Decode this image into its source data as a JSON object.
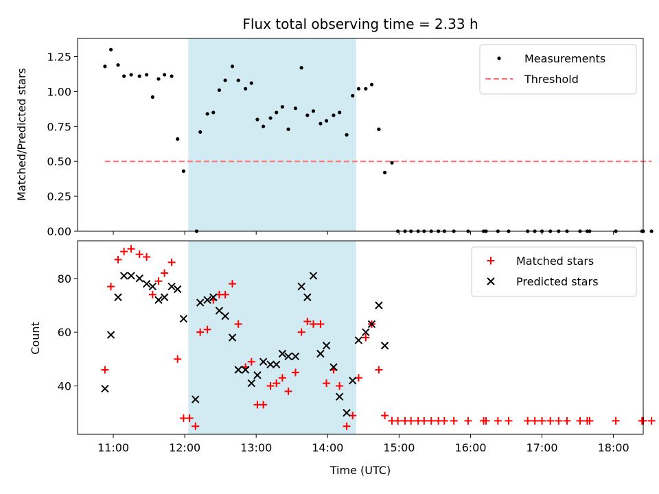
{
  "chart_data": [
    {
      "type": "scatter",
      "title": "Flux total observing time = 2.33 h",
      "xlabel": "",
      "ylabel": "Matched/Predicted stars",
      "xlim": [
        "10:30",
        "18:25"
      ],
      "ylim": [
        0,
        1.38
      ],
      "yticks": [
        "0.00",
        "0.25",
        "0.50",
        "0.75",
        "1.00",
        "1.25"
      ],
      "legend_position": "upper-right",
      "shaded_span": {
        "start": "12:03",
        "end": "14:24",
        "color": "#add8e6"
      },
      "series": [
        {
          "name": "Measurements",
          "color": "#000000",
          "marker": "dot",
          "points": [
            [
              "10:53",
              1.18
            ],
            [
              "10:58",
              1.3
            ],
            [
              "11:04",
              1.19
            ],
            [
              "11:09",
              1.11
            ],
            [
              "11:15",
              1.12
            ],
            [
              "11:22",
              1.11
            ],
            [
              "11:28",
              1.12
            ],
            [
              "11:33",
              0.96
            ],
            [
              "11:38",
              1.09
            ],
            [
              "11:43",
              1.12
            ],
            [
              "11:49",
              1.11
            ],
            [
              "11:54",
              0.66
            ],
            [
              "11:59",
              0.43
            ],
            [
              "12:10",
              0.0
            ],
            [
              "12:13",
              0.71
            ],
            [
              "12:19",
              0.84
            ],
            [
              "12:24",
              0.85
            ],
            [
              "12:29",
              1.01
            ],
            [
              "12:34",
              1.08
            ],
            [
              "12:40",
              1.18
            ],
            [
              "12:45",
              1.08
            ],
            [
              "12:51",
              1.02
            ],
            [
              "12:56",
              1.06
            ],
            [
              "13:01",
              0.8
            ],
            [
              "13:06",
              0.75
            ],
            [
              "13:12",
              0.81
            ],
            [
              "13:17",
              0.85
            ],
            [
              "13:22",
              0.89
            ],
            [
              "13:27",
              0.73
            ],
            [
              "13:33",
              0.88
            ],
            [
              "13:38",
              1.17
            ],
            [
              "13:43",
              0.83
            ],
            [
              "13:48",
              0.86
            ],
            [
              "13:54",
              0.77
            ],
            [
              "13:59",
              0.79
            ],
            [
              "14:05",
              0.83
            ],
            [
              "14:10",
              0.85
            ],
            [
              "14:16",
              0.69
            ],
            [
              "14:21",
              0.97
            ],
            [
              "14:26",
              1.02
            ],
            [
              "14:32",
              1.02
            ],
            [
              "14:37",
              1.05
            ],
            [
              "14:43",
              0.73
            ],
            [
              "14:48",
              0.42
            ],
            [
              "14:54",
              0.49
            ],
            [
              "14:59",
              0.0
            ],
            [
              "15:05",
              0.0
            ],
            [
              "15:10",
              0.0
            ],
            [
              "15:16",
              0.0
            ],
            [
              "15:21",
              0.0
            ],
            [
              "15:27",
              0.0
            ],
            [
              "15:33",
              0.0
            ],
            [
              "15:38",
              0.0
            ],
            [
              "15:46",
              0.0
            ],
            [
              "15:58",
              0.0
            ],
            [
              "16:11",
              0.0
            ],
            [
              "16:13",
              0.0
            ],
            [
              "16:23",
              0.0
            ],
            [
              "16:32",
              0.0
            ],
            [
              "16:48",
              0.0
            ],
            [
              "16:54",
              0.0
            ],
            [
              "17:00",
              0.0
            ],
            [
              "17:07",
              0.0
            ],
            [
              "17:14",
              0.0
            ],
            [
              "17:21",
              0.0
            ],
            [
              "17:32",
              0.0
            ],
            [
              "17:38",
              0.0
            ],
            [
              "17:40",
              0.0
            ],
            [
              "18:02",
              0.0
            ],
            [
              "18:24",
              0.0
            ],
            [
              "18:25",
              0.0
            ],
            [
              "18:32",
              0.0
            ]
          ]
        },
        {
          "name": "Threshold",
          "color": "#ff6f6f",
          "marker": "dashed-line",
          "points": [
            [
              "10:53",
              0.5
            ],
            [
              "18:32",
              0.5
            ]
          ]
        }
      ]
    },
    {
      "type": "scatter",
      "title": "",
      "xlabel": "Time (UTC)",
      "ylabel": "Count",
      "xlim": [
        "10:30",
        "18:25"
      ],
      "ylim": [
        22,
        94
      ],
      "yticks": [
        "40",
        "60",
        "80"
      ],
      "xticks": [
        "11:00",
        "12:00",
        "13:00",
        "14:00",
        "15:00",
        "16:00",
        "17:00",
        "18:00"
      ],
      "legend_position": "upper-right",
      "shaded_span": {
        "start": "12:03",
        "end": "14:24",
        "color": "#add8e6"
      },
      "series": [
        {
          "name": "Matched stars",
          "color": "#ff0000",
          "marker": "plus",
          "points": [
            [
              "10:53",
              46
            ],
            [
              "10:58",
              77
            ],
            [
              "11:04",
              87
            ],
            [
              "11:09",
              90
            ],
            [
              "11:15",
              91
            ],
            [
              "11:22",
              89
            ],
            [
              "11:28",
              88
            ],
            [
              "11:33",
              74
            ],
            [
              "11:38",
              79
            ],
            [
              "11:43",
              82
            ],
            [
              "11:49",
              86
            ],
            [
              "11:54",
              50
            ],
            [
              "11:59",
              28
            ],
            [
              "12:04",
              28
            ],
            [
              "12:09",
              25
            ],
            [
              "12:13",
              60
            ],
            [
              "12:19",
              61
            ],
            [
              "12:24",
              72
            ],
            [
              "12:29",
              74
            ],
            [
              "12:34",
              74
            ],
            [
              "12:40",
              78
            ],
            [
              "12:45",
              63
            ],
            [
              "12:51",
              47
            ],
            [
              "12:56",
              49
            ],
            [
              "13:01",
              33
            ],
            [
              "13:06",
              33
            ],
            [
              "13:12",
              40
            ],
            [
              "13:17",
              41
            ],
            [
              "13:22",
              43
            ],
            [
              "13:27",
              38
            ],
            [
              "13:33",
              45
            ],
            [
              "13:38",
              60
            ],
            [
              "13:43",
              64
            ],
            [
              "13:48",
              63
            ],
            [
              "13:54",
              63
            ],
            [
              "13:59",
              41
            ],
            [
              "14:05",
              46
            ],
            [
              "14:10",
              40
            ],
            [
              "14:16",
              25
            ],
            [
              "14:21",
              29
            ],
            [
              "14:26",
              43
            ],
            [
              "14:32",
              58
            ],
            [
              "14:37",
              63
            ],
            [
              "14:43",
              46
            ],
            [
              "14:48",
              29
            ],
            [
              "14:54",
              27
            ],
            [
              "14:59",
              27
            ],
            [
              "15:05",
              27
            ],
            [
              "15:10",
              27
            ],
            [
              "15:16",
              27
            ],
            [
              "15:21",
              27
            ],
            [
              "15:27",
              27
            ],
            [
              "15:33",
              27
            ],
            [
              "15:38",
              27
            ],
            [
              "15:46",
              27
            ],
            [
              "15:58",
              27
            ],
            [
              "16:11",
              27
            ],
            [
              "16:13",
              27
            ],
            [
              "16:23",
              27
            ],
            [
              "16:32",
              27
            ],
            [
              "16:48",
              27
            ],
            [
              "16:54",
              27
            ],
            [
              "17:00",
              27
            ],
            [
              "17:07",
              27
            ],
            [
              "17:14",
              27
            ],
            [
              "17:21",
              27
            ],
            [
              "17:32",
              27
            ],
            [
              "17:38",
              27
            ],
            [
              "17:40",
              27
            ],
            [
              "18:02",
              27
            ],
            [
              "18:24",
              27
            ],
            [
              "18:25",
              27
            ],
            [
              "18:32",
              27
            ]
          ]
        },
        {
          "name": "Predicted stars",
          "color": "#000000",
          "marker": "x",
          "points": [
            [
              "10:53",
              39
            ],
            [
              "10:58",
              59
            ],
            [
              "11:04",
              73
            ],
            [
              "11:09",
              81
            ],
            [
              "11:15",
              81
            ],
            [
              "11:22",
              80
            ],
            [
              "11:28",
              78
            ],
            [
              "11:33",
              77
            ],
            [
              "11:38",
              72
            ],
            [
              "11:43",
              73
            ],
            [
              "11:49",
              77
            ],
            [
              "11:54",
              76
            ],
            [
              "11:59",
              65
            ],
            [
              "12:09",
              35
            ],
            [
              "12:13",
              71
            ],
            [
              "12:19",
              72
            ],
            [
              "12:24",
              73
            ],
            [
              "12:29",
              68
            ],
            [
              "12:34",
              66
            ],
            [
              "12:40",
              58
            ],
            [
              "12:45",
              46
            ],
            [
              "12:51",
              46
            ],
            [
              "12:56",
              41
            ],
            [
              "13:01",
              44
            ],
            [
              "13:06",
              49
            ],
            [
              "13:12",
              48
            ],
            [
              "13:17",
              48
            ],
            [
              "13:22",
              52
            ],
            [
              "13:27",
              51
            ],
            [
              "13:33",
              51
            ],
            [
              "13:38",
              77
            ],
            [
              "13:43",
              73
            ],
            [
              "13:48",
              81
            ],
            [
              "13:54",
              52
            ],
            [
              "13:59",
              55
            ],
            [
              "14:05",
              47
            ],
            [
              "14:10",
              36
            ],
            [
              "14:16",
              30
            ],
            [
              "14:21",
              42
            ],
            [
              "14:26",
              57
            ],
            [
              "14:32",
              60
            ],
            [
              "14:37",
              63
            ],
            [
              "14:43",
              70
            ],
            [
              "14:48",
              55
            ]
          ]
        }
      ]
    }
  ]
}
